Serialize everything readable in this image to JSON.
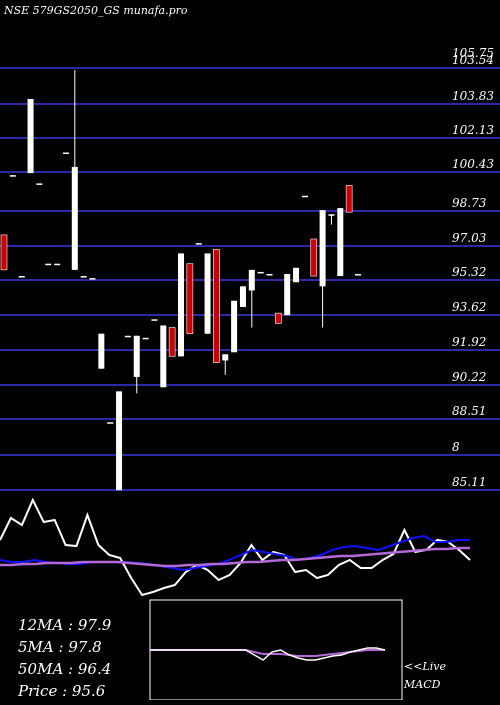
{
  "title": "NSE 579GS2050_GS munafa.pro",
  "price_axis_labels": [
    "105.75",
    "103.54",
    "103.83",
    "102.13",
    "100.43",
    "98.73",
    "97.03",
    "95.32",
    "93.62",
    "91.92",
    "90.22",
    "88.51",
    "8",
    "85.11"
  ],
  "stats": {
    "ma12": "12MA : 97.9",
    "ma5": "5MA : 97.8",
    "ma50": "50MA : 96.4",
    "price": "Price   : 95.6"
  },
  "macd_label": [
    "<<Live",
    "MACD"
  ],
  "colors": {
    "background": "#000000",
    "grid": "#2a2aa8",
    "up": "#ffffff",
    "down": "#cc0000",
    "ma_purple": "#b36ad6",
    "ma_blue": "#1010ff"
  },
  "chart_data": {
    "type": "candlestick",
    "ylim": [
      85.11,
      105.75
    ],
    "candles": [
      {
        "o": 97.5,
        "h": 97.5,
        "c": 95.8,
        "l": 95.8,
        "dir": "down"
      },
      {
        "o": 100.4,
        "h": 100.4,
        "c": 100.4,
        "l": 100.4,
        "dir": "flat"
      },
      {
        "o": 95.5,
        "h": 95.5,
        "c": 95.5,
        "l": 95.5,
        "dir": "flat"
      },
      {
        "o": 100.5,
        "h": 104.1,
        "c": 104.1,
        "l": 100.5,
        "dir": "up"
      },
      {
        "o": 100.0,
        "h": 100.0,
        "c": 100.0,
        "l": 100.0,
        "dir": "flat"
      },
      {
        "o": 96.1,
        "h": 96.1,
        "c": 96.1,
        "l": 96.1,
        "dir": "flat"
      },
      {
        "o": 96.1,
        "h": 96.1,
        "c": 96.1,
        "l": 96.1,
        "dir": "flat"
      },
      {
        "o": 101.5,
        "h": 101.5,
        "c": 101.5,
        "l": 101.5,
        "dir": "flat"
      },
      {
        "o": 95.8,
        "h": 105.5,
        "c": 100.8,
        "l": 95.8,
        "dir": "up"
      },
      {
        "o": 95.5,
        "h": 95.5,
        "c": 95.5,
        "l": 95.5,
        "dir": "flat"
      },
      {
        "o": 95.4,
        "h": 95.4,
        "c": 95.4,
        "l": 95.4,
        "dir": "flat"
      },
      {
        "o": 91.0,
        "h": 92.7,
        "c": 92.7,
        "l": 91.0,
        "dir": "up"
      },
      {
        "o": 88.4,
        "h": 88.4,
        "c": 88.4,
        "l": 88.4,
        "dir": "flat"
      },
      {
        "o": 85.1,
        "h": 89.9,
        "c": 89.9,
        "l": 85.1,
        "dir": "up"
      },
      {
        "o": 92.6,
        "h": 92.6,
        "c": 92.6,
        "l": 92.6,
        "dir": "flat"
      },
      {
        "o": 90.6,
        "h": 92.6,
        "c": 92.6,
        "l": 89.8,
        "dir": "up"
      },
      {
        "o": 92.5,
        "h": 92.5,
        "c": 92.5,
        "l": 92.5,
        "dir": "flat"
      },
      {
        "o": 93.4,
        "h": 93.4,
        "c": 93.4,
        "l": 93.4,
        "dir": "flat"
      },
      {
        "o": 90.1,
        "h": 93.1,
        "c": 93.1,
        "l": 90.1,
        "dir": "up"
      },
      {
        "o": 93.0,
        "h": 93.0,
        "c": 91.6,
        "l": 91.6,
        "dir": "down"
      },
      {
        "o": 91.6,
        "h": 96.6,
        "c": 96.6,
        "l": 91.6,
        "dir": "up"
      },
      {
        "o": 96.1,
        "h": 96.1,
        "c": 92.7,
        "l": 92.7,
        "dir": "down"
      },
      {
        "o": 97.1,
        "h": 97.1,
        "c": 97.1,
        "l": 97.1,
        "dir": "flat"
      },
      {
        "o": 92.7,
        "h": 96.6,
        "c": 96.6,
        "l": 92.7,
        "dir": "up"
      },
      {
        "o": 96.8,
        "h": 96.8,
        "c": 91.3,
        "l": 91.3,
        "dir": "down"
      },
      {
        "o": 91.4,
        "h": 91.7,
        "c": 91.7,
        "l": 90.7,
        "dir": "up"
      },
      {
        "o": 91.8,
        "h": 94.3,
        "c": 94.3,
        "l": 91.8,
        "dir": "up"
      },
      {
        "o": 94.0,
        "h": 95.0,
        "c": 95.0,
        "l": 94.0,
        "dir": "up"
      },
      {
        "o": 94.8,
        "h": 95.8,
        "c": 95.8,
        "l": 93.0,
        "dir": "up"
      },
      {
        "o": 95.7,
        "h": 95.7,
        "c": 95.7,
        "l": 95.7,
        "dir": "flat"
      },
      {
        "o": 95.6,
        "h": 95.6,
        "c": 95.6,
        "l": 95.6,
        "dir": "flat"
      },
      {
        "o": 93.7,
        "h": 93.7,
        "c": 93.2,
        "l": 93.2,
        "dir": "down"
      },
      {
        "o": 93.6,
        "h": 95.6,
        "c": 95.6,
        "l": 93.6,
        "dir": "up"
      },
      {
        "o": 95.2,
        "h": 95.9,
        "c": 95.9,
        "l": 95.2,
        "dir": "up"
      },
      {
        "o": 99.4,
        "h": 99.4,
        "c": 99.4,
        "l": 99.4,
        "dir": "flat"
      },
      {
        "o": 97.3,
        "h": 97.3,
        "c": 95.5,
        "l": 95.5,
        "dir": "down"
      },
      {
        "o": 95.0,
        "h": 98.7,
        "c": 98.7,
        "l": 93.0,
        "dir": "up"
      },
      {
        "o": 98.5,
        "h": 98.5,
        "c": 98.5,
        "l": 98.0,
        "dir": "up"
      },
      {
        "o": 95.5,
        "h": 98.8,
        "c": 98.8,
        "l": 95.5,
        "dir": "up"
      },
      {
        "o": 99.9,
        "h": 99.9,
        "c": 98.6,
        "l": 98.6,
        "dir": "down"
      },
      {
        "o": 95.6,
        "h": 95.6,
        "c": 95.6,
        "l": 95.6,
        "dir": "flat"
      }
    ],
    "indicators": {
      "white_line": [
        0.4,
        0.18,
        0.25,
        0.0,
        0.22,
        0.2,
        0.45,
        0.46,
        0.15,
        0.45,
        0.55,
        0.58,
        0.78,
        0.95,
        0.92,
        0.88,
        0.85,
        0.72,
        0.65,
        0.7,
        0.8,
        0.75,
        0.63,
        0.45,
        0.6,
        0.52,
        0.55,
        0.72,
        0.7,
        0.78,
        0.75,
        0.65,
        0.6,
        0.68,
        0.68,
        0.6,
        0.54,
        0.3,
        0.52,
        0.5,
        0.4,
        0.42,
        0.5,
        0.6
      ],
      "blue_line": [
        0.6,
        0.62,
        0.62,
        0.6,
        0.62,
        0.63,
        0.64,
        0.64,
        0.62,
        0.62,
        0.62,
        0.62,
        0.63,
        0.64,
        0.66,
        0.68,
        0.7,
        0.68,
        0.66,
        0.64,
        0.6,
        0.55,
        0.5,
        0.52,
        0.54,
        0.56,
        0.6,
        0.58,
        0.55,
        0.5,
        0.47,
        0.46,
        0.48,
        0.5,
        0.46,
        0.42,
        0.38,
        0.36,
        0.42,
        0.42,
        0.4,
        0.4
      ],
      "purple_line": [
        0.65,
        0.65,
        0.64,
        0.64,
        0.63,
        0.63,
        0.63,
        0.62,
        0.62,
        0.62,
        0.62,
        0.63,
        0.64,
        0.65,
        0.66,
        0.66,
        0.65,
        0.65,
        0.64,
        0.64,
        0.63,
        0.62,
        0.62,
        0.61,
        0.6,
        0.6,
        0.59,
        0.58,
        0.57,
        0.56,
        0.56,
        0.55,
        0.54,
        0.53,
        0.52,
        0.51,
        0.5,
        0.49,
        0.49,
        0.48,
        0.48
      ],
      "macd_white": [
        0.5,
        0.5,
        0.5,
        0.5,
        0.5,
        0.5,
        0.5,
        0.5,
        0.5,
        0.5,
        0.5,
        0.5,
        0.55,
        0.6,
        0.52,
        0.5,
        0.55,
        0.58,
        0.6,
        0.6,
        0.58,
        0.56,
        0.55,
        0.52,
        0.5,
        0.48,
        0.48,
        0.5
      ],
      "macd_purple": [
        0.5,
        0.5,
        0.5,
        0.5,
        0.5,
        0.5,
        0.5,
        0.5,
        0.5,
        0.5,
        0.5,
        0.5,
        0.52,
        0.54,
        0.54,
        0.54,
        0.55,
        0.56,
        0.56,
        0.56,
        0.55,
        0.54,
        0.53,
        0.52,
        0.51,
        0.5,
        0.5,
        0.5
      ]
    }
  }
}
